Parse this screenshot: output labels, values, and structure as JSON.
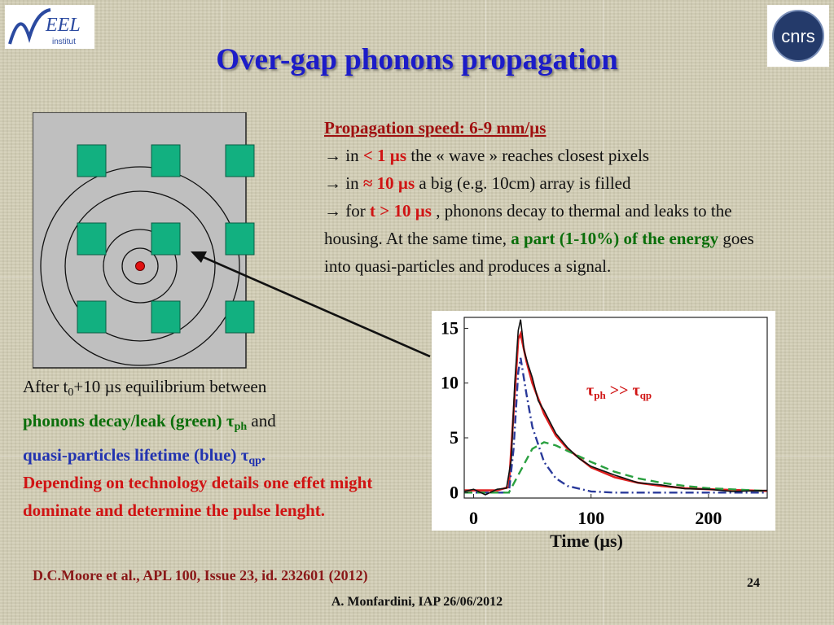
{
  "slide": {
    "title": "Over-gap phonons propagation",
    "page_number": "24",
    "footer_author": "A. Monfardini, IAP 26/06/2012",
    "reference": "D.C.Moore et al., APL 100, Issue 23, id. 232601 (2012)"
  },
  "logos": {
    "left": "NEEL institut",
    "right": "cnrs"
  },
  "propagation": {
    "heading": "Propagation speed: 6-9 mm/µs",
    "line1_prefix": "→ in ",
    "line1_value": "< 1 µs",
    "line1_suffix": " the « wave » reaches closest pixels",
    "line2_prefix": "→ in ",
    "line2_value": "≈ 10 µs",
    "line2_suffix": " a big (e.g. 10cm) array is filled",
    "line3_prefix": "→ for ",
    "line3_value": "t > 10 µs",
    "line3_suffix": " , phonons decay to thermal and leaks to the housing. At the same time, ",
    "line3_green": "a part (1-10%) of the energy",
    "line3_end": " goes into quasi-particles and produces a signal."
  },
  "equilibrium": {
    "prefix": "After t",
    "sub": "0",
    "suffix": "+10 µs equilibrium between",
    "green_text": "phonons decay/leak (green) τ",
    "green_sub": "ph",
    "and": " and",
    "blue_text": "quasi-particles lifetime (blue) τ",
    "blue_sub": "qp",
    "blue_end": "."
  },
  "conclusion": "Depending on technology details one effet might dominate and determine the pulse lenght.",
  "chart_data": {
    "type": "line",
    "xlabel": "Time (µs)",
    "ylabel": "",
    "xlim": [
      -8,
      250
    ],
    "ylim": [
      -0.5,
      16
    ],
    "x_ticks": [
      "0",
      "100",
      "200"
    ],
    "y_ticks": [
      "0",
      "5",
      "10",
      "15"
    ],
    "annotation": {
      "text_left": "τ",
      "sub_left": "ph",
      "text_mid": " >> τ",
      "sub_right": "qp"
    },
    "series_colors": {
      "data": "#111111",
      "fit_total": "#e02020",
      "quasi_particles": "#2a3a9a",
      "phonons": "#2aa040"
    },
    "series": [
      {
        "id": "fit_total",
        "x": [
          -8,
          20,
          30,
          35,
          38,
          40,
          45,
          50,
          60,
          70,
          80,
          100,
          120,
          140,
          160,
          180,
          200,
          250
        ],
        "y": [
          0.2,
          0.2,
          0.5,
          9,
          14,
          14.5,
          12,
          10,
          7.2,
          5.2,
          4,
          2.3,
          1.4,
          0.9,
          0.6,
          0.4,
          0.3,
          0.15
        ]
      },
      {
        "id": "quasi_particles",
        "x": [
          -8,
          30,
          34,
          38,
          40,
          45,
          50,
          60,
          70,
          80,
          100,
          120,
          250
        ],
        "y": [
          0,
          0,
          4,
          11,
          12.3,
          9,
          6,
          2.8,
          1.3,
          0.6,
          0.1,
          0,
          0
        ]
      },
      {
        "id": "phonons",
        "x": [
          -8,
          30,
          40,
          50,
          60,
          70,
          80,
          100,
          120,
          140,
          160,
          180,
          200,
          250
        ],
        "y": [
          0,
          0,
          2,
          4,
          4.6,
          4.3,
          3.8,
          2.8,
          1.9,
          1.3,
          0.9,
          0.6,
          0.4,
          0.15
        ]
      },
      {
        "id": "data",
        "x": [
          -8,
          0,
          10,
          20,
          28,
          32,
          35,
          38,
          40,
          43,
          46,
          50,
          55,
          60,
          70,
          80,
          90,
          100,
          120,
          140,
          160,
          180,
          200,
          220,
          250
        ],
        "y": [
          0.1,
          0.3,
          -0.2,
          0.3,
          0.4,
          3,
          10,
          14.8,
          15.8,
          13,
          11.8,
          10.5,
          8.4,
          7.5,
          5.4,
          4.1,
          3.1,
          2.4,
          1.6,
          0.9,
          0.7,
          0.35,
          0.3,
          0.1,
          0.2
        ]
      }
    ]
  }
}
